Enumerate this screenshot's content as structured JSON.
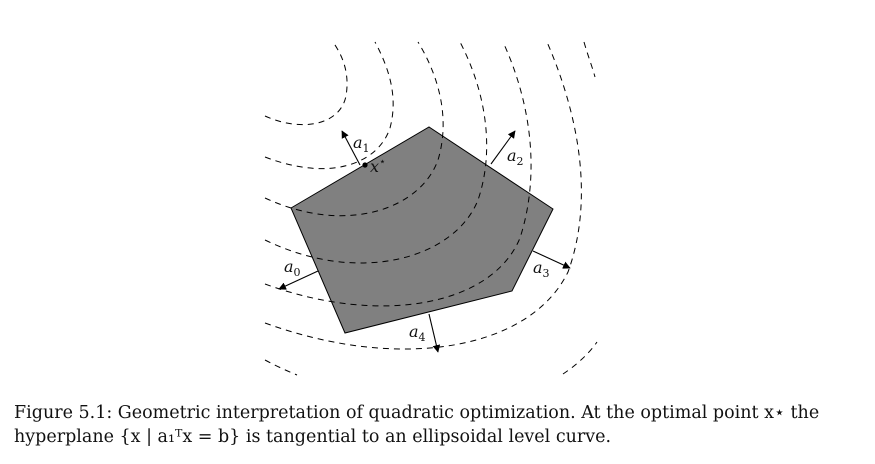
{
  "figure": {
    "labels": {
      "a0": {
        "base": "a",
        "sub": "0"
      },
      "a1": {
        "base": "a",
        "sub": "1"
      },
      "a2": {
        "base": "a",
        "sub": "2"
      },
      "a3": {
        "base": "a",
        "sub": "3"
      },
      "a4": {
        "base": "a",
        "sub": "4"
      },
      "xstar": {
        "base": "x",
        "sup": "⋆"
      }
    },
    "colors": {
      "polygon_fill": "#808080",
      "stroke": "#000000",
      "background": "#ffffff"
    }
  },
  "caption": {
    "line1": "Figure 5.1: Geometric interpretation of quadratic optimization. At the optimal point x⋆ the",
    "line2": "hyperplane {x | a₁ᵀx = b} is tangential to an ellipsoidal level curve."
  }
}
